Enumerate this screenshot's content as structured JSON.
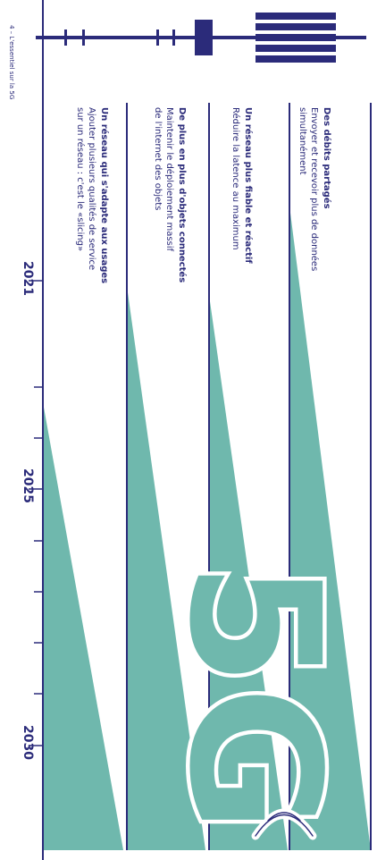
{
  "page_footer": "4 – L'essentiel sur la 5G",
  "brand_mark": "5G",
  "colors": {
    "navy": "#2b2b7a",
    "teal": "#6fb8ad",
    "light": "#ffffff"
  },
  "timeline": {
    "years": [
      "2021",
      "2025",
      "2030"
    ]
  },
  "features": [
    {
      "title": "Des débits partagés",
      "lines": [
        "Envoyer et recevoir plus de données",
        "simultanément"
      ]
    },
    {
      "title": "Un réseau plus fiable et réactif",
      "lines": [
        "Réduire la latence au maximum"
      ]
    },
    {
      "title": "De plus en plus d'objets connectés",
      "lines": [
        "Maintenir le déploiement massif",
        "de l'internet des objets"
      ]
    },
    {
      "title": "Un réseau qui s'adapte aux usages",
      "lines": [
        "Ajouter plusieurs qualités de service",
        "sur un réseau : c'est le «slicing»"
      ]
    }
  ]
}
